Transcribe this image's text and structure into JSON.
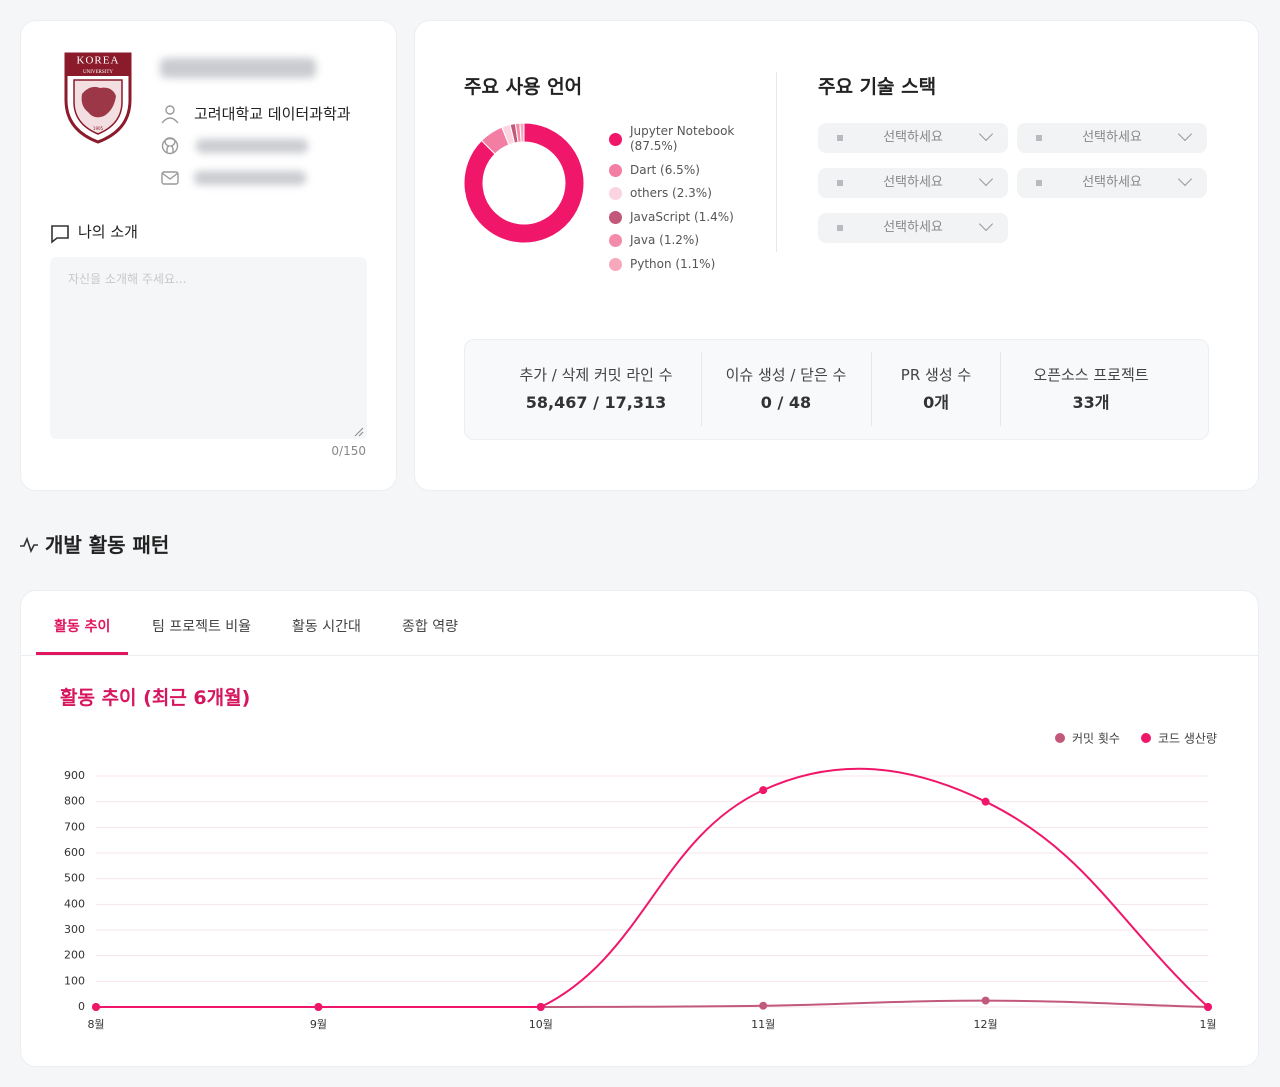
{
  "profile": {
    "logo_text": [
      "KOREA",
      "UNIVERSITY",
      "1905"
    ],
    "department": "고려대학교 데이터과학과",
    "intro": {
      "label": "나의 소개",
      "placeholder": "자신을 소개해 주세요...",
      "counter": "0/150"
    }
  },
  "tech_stack": {
    "title": "주요 기술 스택",
    "selects": [
      "선택하세요",
      "선택하세요",
      "선택하세요",
      "선택하세요",
      "선택하세요"
    ]
  },
  "stats": [
    {
      "label": "추가 / 삭제 커밋 라인 수",
      "value": "58,467 / 17,313"
    },
    {
      "label": "이슈 생성 / 닫은 수",
      "value": "0 / 48"
    },
    {
      "label": "PR 생성 수",
      "value": "0개"
    },
    {
      "label": "오픈소스 프로젝트",
      "value": "33개"
    }
  ],
  "section": {
    "title": "개발 활동 패턴",
    "tabs": [
      "활동 추이",
      "팀 프로젝트 비율",
      "활동 시간대",
      "종합 역량"
    ]
  },
  "chart_data": [
    {
      "type": "pie",
      "title": "주요 사용 언어",
      "donut": true,
      "categories": [
        "Jupyter Notebook (87.5%)",
        "Dart (6.5%)",
        "others (2.3%)",
        "JavaScript (1.4%)",
        "Java (1.2%)",
        "Python (1.1%)"
      ],
      "values": [
        87.5,
        6.5,
        2.3,
        1.4,
        1.2,
        1.1
      ],
      "colors": [
        "#f0176a",
        "#f27ea3",
        "#fcd4e1",
        "#c2587a",
        "#f48bab",
        "#f7a8bd"
      ]
    },
    {
      "type": "line",
      "title": "활동 추이 (최근 6개월)",
      "categories": [
        "8월",
        "9월",
        "10월",
        "11월",
        "12월",
        "1월"
      ],
      "series": [
        {
          "name": "커밋 횟수",
          "color": "#c2587a",
          "values": [
            0,
            0,
            0,
            5,
            25,
            0
          ]
        },
        {
          "name": "코드 생산량",
          "color": "#f0176a",
          "values": [
            0,
            0,
            0,
            845,
            800,
            0
          ]
        }
      ],
      "ylim": [
        0,
        900
      ],
      "yticks": [
        0,
        100,
        200,
        300,
        400,
        500,
        600,
        700,
        800,
        900
      ],
      "grid": true,
      "legend": "top-right"
    }
  ]
}
